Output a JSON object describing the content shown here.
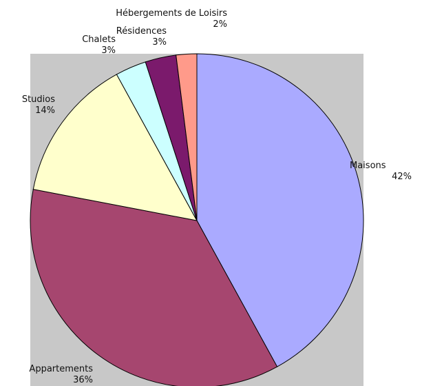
{
  "chart_data": {
    "type": "pie",
    "categories": [
      "Maisons",
      "Appartements",
      "Studios",
      "Chalets",
      "Résidences",
      "Hébergements de Loisirs"
    ],
    "values": [
      42,
      36,
      14,
      3,
      3,
      2
    ],
    "value_labels": [
      "42%",
      "36%",
      "14%",
      "3%",
      "3%",
      "2%"
    ],
    "colors": [
      "#aaaaff",
      "#a6466f",
      "#ffffcc",
      "#ccffff",
      "#7b1a6c",
      "#ff9a8a"
    ]
  }
}
